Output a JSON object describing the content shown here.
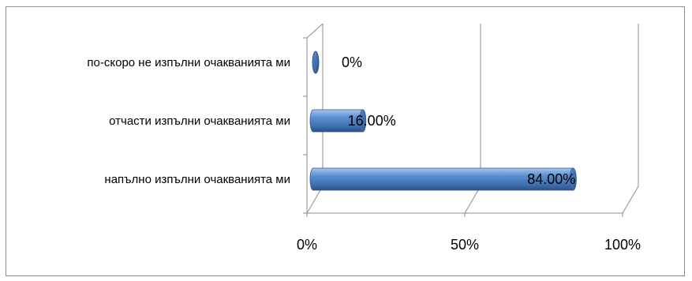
{
  "chart_data": {
    "type": "bar",
    "orientation": "horizontal",
    "style": "3d-cylinder",
    "categories": [
      "по-скоро не изпълни очакванията ми",
      "отчасти изпълни очакванията ми",
      "напълно изпълни очакванията ми"
    ],
    "values": [
      0,
      16,
      84
    ],
    "data_labels": [
      "0%",
      "16.00%",
      "84.00%"
    ],
    "xlim": [
      0,
      100
    ],
    "x_ticks": [
      0,
      50,
      100
    ],
    "x_tick_labels": [
      "0%",
      "50%",
      "100%"
    ],
    "grid": true,
    "legend": "none",
    "bar_color": "#4a7ebf"
  }
}
